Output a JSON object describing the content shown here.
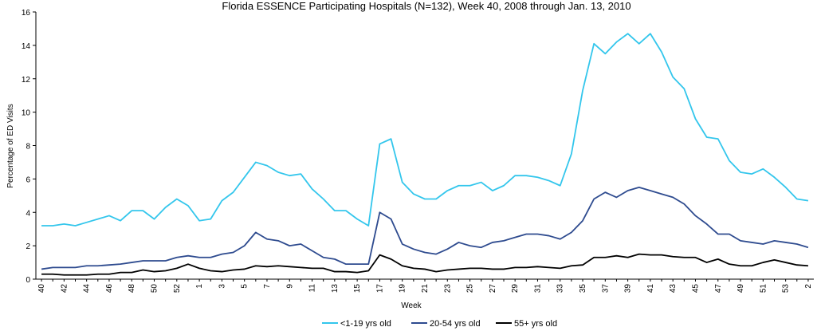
{
  "chart_data": {
    "type": "line",
    "title": "Florida ESSENCE Participating Hospitals (N=132), Week 40, 2008 through Jan. 13, 2010",
    "x_label": "Week",
    "y_label": "Percentage of ED Visits",
    "categories": [
      "40",
      null,
      "42",
      null,
      "44",
      null,
      "46",
      null,
      "48",
      null,
      "50",
      null,
      "52",
      null,
      "1",
      null,
      "3",
      null,
      "5",
      null,
      "7",
      null,
      "9",
      null,
      "11",
      null,
      "13",
      null,
      "15",
      null,
      "17",
      null,
      "19",
      null,
      "21",
      null,
      "23",
      null,
      "25",
      null,
      "27",
      null,
      "29",
      null,
      "31",
      null,
      "33",
      null,
      "35",
      null,
      "37",
      null,
      "39",
      null,
      "41",
      null,
      "43",
      null,
      "45",
      null,
      "47",
      null,
      "49",
      null,
      "51",
      null,
      "53",
      null,
      "2"
    ],
    "series": [
      {
        "name": "<1-19 yrs old",
        "color": "#33c6ec",
        "values": [
          3.2,
          3.2,
          3.3,
          3.2,
          3.4,
          3.6,
          3.8,
          3.5,
          4.1,
          4.1,
          3.6,
          4.3,
          4.8,
          4.4,
          3.5,
          3.6,
          4.7,
          5.2,
          6.1,
          7.0,
          6.8,
          6.4,
          6.2,
          6.3,
          5.4,
          4.8,
          4.1,
          4.1,
          3.6,
          3.2,
          8.1,
          8.4,
          5.8,
          5.1,
          4.8,
          4.8,
          5.3,
          5.6,
          5.6,
          5.8,
          5.3,
          5.6,
          6.2,
          6.2,
          6.1,
          5.9,
          5.6,
          7.5,
          11.3,
          14.1,
          13.5,
          14.2,
          14.7,
          14.1,
          14.7,
          13.6,
          12.1,
          11.4,
          9.6,
          8.5,
          8.4,
          7.1,
          6.4,
          6.3,
          6.6,
          6.1,
          5.5,
          4.8,
          4.7
        ]
      },
      {
        "name": "20-54 yrs old",
        "color": "#2e4b8f",
        "values": [
          0.6,
          0.7,
          0.7,
          0.7,
          0.8,
          0.8,
          0.85,
          0.9,
          1.0,
          1.1,
          1.1,
          1.1,
          1.3,
          1.4,
          1.3,
          1.3,
          1.5,
          1.6,
          2.0,
          2.8,
          2.4,
          2.3,
          2.0,
          2.1,
          1.7,
          1.3,
          1.2,
          0.9,
          0.9,
          0.9,
          4.0,
          3.6,
          2.1,
          1.8,
          1.6,
          1.5,
          1.8,
          2.2,
          2.0,
          1.9,
          2.2,
          2.3,
          2.5,
          2.7,
          2.7,
          2.6,
          2.4,
          2.8,
          3.5,
          4.8,
          5.2,
          4.9,
          5.3,
          5.5,
          5.3,
          5.1,
          4.9,
          4.5,
          3.8,
          3.3,
          2.7,
          2.7,
          2.3,
          2.2,
          2.1,
          2.3,
          2.2,
          2.1,
          1.9
        ]
      },
      {
        "name": "55+ yrs old",
        "color": "#000000",
        "values": [
          0.3,
          0.3,
          0.25,
          0.25,
          0.25,
          0.3,
          0.3,
          0.4,
          0.4,
          0.55,
          0.45,
          0.5,
          0.65,
          0.9,
          0.65,
          0.5,
          0.45,
          0.55,
          0.6,
          0.8,
          0.75,
          0.8,
          0.75,
          0.7,
          0.65,
          0.65,
          0.45,
          0.45,
          0.4,
          0.5,
          1.45,
          1.2,
          0.8,
          0.65,
          0.6,
          0.45,
          0.55,
          0.6,
          0.65,
          0.65,
          0.6,
          0.6,
          0.7,
          0.7,
          0.75,
          0.7,
          0.65,
          0.8,
          0.85,
          1.3,
          1.3,
          1.4,
          1.3,
          1.5,
          1.45,
          1.45,
          1.35,
          1.3,
          1.3,
          1.0,
          1.2,
          0.9,
          0.8,
          0.8,
          1.0,
          1.15,
          1.0,
          0.85,
          0.8
        ]
      }
    ],
    "ylim": [
      0,
      16
    ],
    "yticks": [
      0,
      2,
      4,
      6,
      8,
      10,
      12,
      14,
      16
    ],
    "grid": false,
    "legend": "bottom"
  }
}
